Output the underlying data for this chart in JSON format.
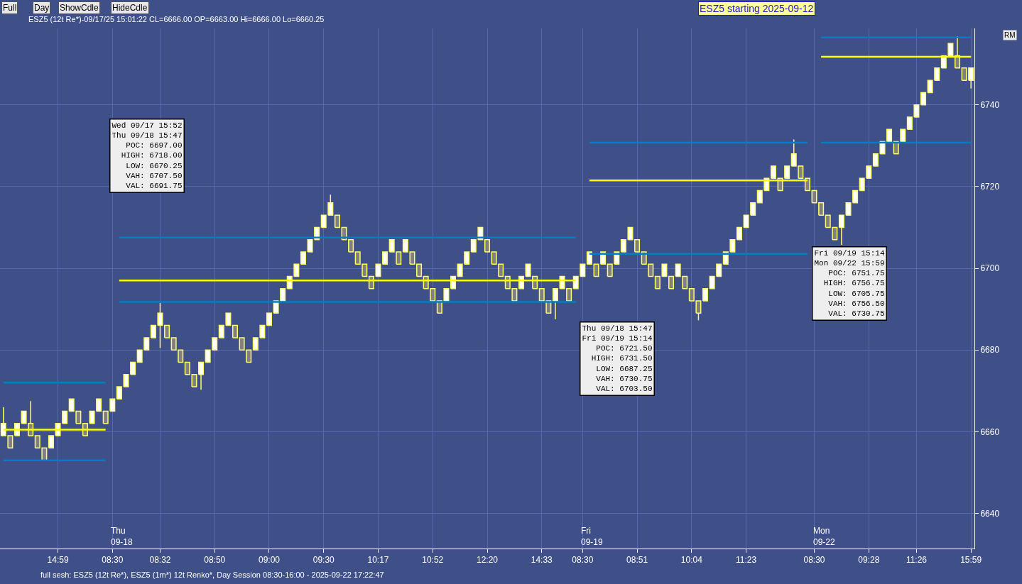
{
  "chart_data": {
    "type": "candlestick",
    "title": "ESZ5 (12t Re*)-09/17/25 15:01:22 CL=6666.00 OP=6663.00 Hi=6666.00 Lo=6660.25",
    "subtitle": "ESZ5 starting 2025-09-12",
    "categories": [
      null,
      null,
      null,
      null,
      null,
      null,
      null,
      null,
      "14:59",
      null,
      null,
      null,
      null,
      null,
      null,
      null,
      "08:30",
      null,
      null,
      null,
      null,
      null,
      null,
      "08:32",
      null,
      null,
      null,
      null,
      null,
      null,
      null,
      "08:50",
      null,
      null,
      null,
      null,
      null,
      null,
      null,
      "09:00",
      null,
      null,
      null,
      null,
      null,
      null,
      null,
      "09:30",
      null,
      null,
      null,
      null,
      null,
      null,
      null,
      "10:17",
      null,
      null,
      null,
      null,
      null,
      null,
      null,
      "10:52",
      null,
      null,
      null,
      null,
      null,
      null,
      null,
      "12:20",
      null,
      null,
      null,
      null,
      null,
      null,
      null,
      "14:33",
      null,
      null,
      null,
      null,
      null,
      "08:30",
      null,
      null,
      null,
      null,
      null,
      null,
      null,
      "08:51",
      null,
      null,
      null,
      null,
      null,
      null,
      null,
      "10:04",
      null,
      null,
      null,
      null,
      null,
      null,
      null,
      "11:23",
      null,
      null,
      null,
      null,
      null,
      null,
      null,
      null,
      null,
      "08:30",
      null,
      null,
      null,
      null,
      null,
      null,
      null,
      "09:28",
      null,
      null,
      null,
      null,
      null,
      null,
      "11:26",
      null,
      null,
      null,
      null,
      null,
      null,
      null,
      "15:59"
    ],
    "series": [
      {
        "ohlc": [
          [
            6659,
            6666,
            6659,
            6662
          ],
          [
            6659,
            6659,
            6656,
            6656
          ],
          [
            6659,
            6662,
            6659,
            6662
          ],
          [
            6662,
            6665,
            6662,
            6665
          ],
          [
            6662,
            6667.5,
            6659,
            6659
          ],
          [
            6659,
            6659,
            6656,
            6656
          ],
          [
            6656,
            6656,
            6653,
            6653
          ],
          [
            6656,
            6659,
            6656,
            6659
          ],
          [
            6659,
            6662,
            6659,
            6662
          ],
          [
            6662,
            6665,
            6662,
            6665
          ],
          [
            6665,
            6668,
            6665,
            6668
          ],
          [
            6665,
            6665,
            6662,
            6662
          ],
          [
            6662,
            6662,
            6659,
            6659
          ],
          [
            6662,
            6665,
            6662,
            6665
          ],
          [
            6665,
            6668,
            6665,
            6668
          ],
          [
            6665,
            6665,
            6662,
            6662
          ],
          [
            6665,
            6668,
            6665,
            6668
          ],
          [
            6668,
            6671,
            6668,
            6671
          ],
          [
            6671,
            6674,
            6671,
            6674
          ],
          [
            6674,
            6677,
            6674,
            6677
          ],
          [
            6677,
            6680,
            6677,
            6680
          ],
          [
            6680,
            6683,
            6680,
            6683
          ],
          [
            6683,
            6686,
            6683,
            6686
          ],
          [
            6686,
            6691.5,
            6680.5,
            6689
          ],
          [
            6686,
            6686,
            6683,
            6683
          ],
          [
            6683,
            6683,
            6680,
            6680
          ],
          [
            6680,
            6680,
            6677,
            6677
          ],
          [
            6677,
            6677,
            6674,
            6674
          ],
          [
            6674,
            6674,
            6671,
            6671
          ],
          [
            6674,
            6677,
            6670.25,
            6677
          ],
          [
            6677,
            6680,
            6677,
            6680
          ],
          [
            6680,
            6683,
            6680,
            6683
          ],
          [
            6683,
            6686,
            6683,
            6686
          ],
          [
            6686,
            6689,
            6686,
            6689
          ],
          [
            6686,
            6686,
            6683,
            6683
          ],
          [
            6683,
            6683,
            6680,
            6680
          ],
          [
            6680,
            6680,
            6677,
            6677
          ],
          [
            6680,
            6683,
            6680,
            6683
          ],
          [
            6683,
            6686,
            6683,
            6686
          ],
          [
            6686,
            6689,
            6686,
            6689
          ],
          [
            6689,
            6692,
            6689,
            6692
          ],
          [
            6692,
            6695,
            6692,
            6695
          ],
          [
            6695,
            6698,
            6695,
            6698
          ],
          [
            6698,
            6701,
            6698,
            6701
          ],
          [
            6701,
            6704,
            6701,
            6704
          ],
          [
            6704,
            6707,
            6704,
            6707
          ],
          [
            6707,
            6710,
            6707,
            6710
          ],
          [
            6710,
            6713,
            6710,
            6713
          ],
          [
            6713,
            6718,
            6713,
            6716
          ],
          [
            6713,
            6713,
            6710,
            6710
          ],
          [
            6710,
            6710,
            6707,
            6707
          ],
          [
            6707,
            6707,
            6704,
            6704
          ],
          [
            6704,
            6704,
            6701,
            6701
          ],
          [
            6701,
            6701,
            6698,
            6698
          ],
          [
            6698,
            6698,
            6695,
            6695
          ],
          [
            6698,
            6701,
            6698,
            6701
          ],
          [
            6701,
            6704,
            6701,
            6704
          ],
          [
            6704,
            6707,
            6704,
            6707
          ],
          [
            6704,
            6704,
            6701,
            6701
          ],
          [
            6704,
            6707,
            6704,
            6707
          ],
          [
            6704,
            6704,
            6701,
            6701
          ],
          [
            6701,
            6701,
            6698,
            6698
          ],
          [
            6698,
            6698,
            6695,
            6695
          ],
          [
            6695,
            6695,
            6692,
            6692
          ],
          [
            6692,
            6692,
            6689,
            6689
          ],
          [
            6692,
            6695,
            6692,
            6695
          ],
          [
            6695,
            6698,
            6695,
            6698
          ],
          [
            6698,
            6701,
            6698,
            6701
          ],
          [
            6701,
            6704,
            6701,
            6704
          ],
          [
            6704,
            6707,
            6704,
            6707
          ],
          [
            6707,
            6710,
            6707,
            6710
          ],
          [
            6707,
            6707,
            6704,
            6704
          ],
          [
            6704,
            6704,
            6701,
            6701
          ],
          [
            6701,
            6701,
            6698,
            6698
          ],
          [
            6698,
            6698,
            6695,
            6695
          ],
          [
            6695,
            6695,
            6692,
            6692
          ],
          [
            6695,
            6698,
            6695,
            6698
          ],
          [
            6698,
            6701,
            6698,
            6701
          ],
          [
            6698,
            6698,
            6695,
            6695
          ],
          [
            6695,
            6695,
            6692,
            6692
          ],
          [
            6692,
            6692,
            6689,
            6689
          ],
          [
            6692,
            6695,
            6687.5,
            6695
          ],
          [
            6695,
            6698,
            6695,
            6698
          ],
          [
            6695,
            6695,
            6692,
            6692
          ],
          [
            6695,
            6698,
            6695,
            6698
          ],
          [
            6698,
            6701,
            6698,
            6701
          ],
          [
            6701,
            6704,
            6701,
            6704
          ],
          [
            6701,
            6701,
            6698,
            6698
          ],
          [
            6701,
            6704,
            6701,
            6704
          ],
          [
            6701,
            6701,
            6698,
            6698
          ],
          [
            6701,
            6704,
            6701,
            6704
          ],
          [
            6704,
            6707,
            6704,
            6707
          ],
          [
            6707,
            6710,
            6707,
            6710
          ],
          [
            6707,
            6707,
            6704,
            6704
          ],
          [
            6704,
            6704,
            6701,
            6701
          ],
          [
            6701,
            6701,
            6698,
            6698
          ],
          [
            6698,
            6698,
            6695,
            6695
          ],
          [
            6698,
            6701,
            6698,
            6701
          ],
          [
            6698,
            6698,
            6695,
            6695
          ],
          [
            6698,
            6701,
            6698,
            6701
          ],
          [
            6698,
            6698,
            6695,
            6695
          ],
          [
            6695,
            6695,
            6692,
            6692
          ],
          [
            6692,
            6692,
            6687.25,
            6689
          ],
          [
            6692,
            6695,
            6692,
            6695
          ],
          [
            6695,
            6698,
            6695,
            6698
          ],
          [
            6698,
            6701,
            6698,
            6701
          ],
          [
            6701,
            6704,
            6701,
            6704
          ],
          [
            6704,
            6707,
            6704,
            6707
          ],
          [
            6707,
            6710,
            6707,
            6710
          ],
          [
            6710,
            6713,
            6710,
            6713
          ],
          [
            6713,
            6716,
            6713,
            6716
          ],
          [
            6716,
            6719,
            6716,
            6719
          ],
          [
            6719,
            6722,
            6719,
            6722
          ],
          [
            6722,
            6725,
            6722,
            6725
          ],
          [
            6722,
            6722,
            6719,
            6719
          ],
          [
            6722,
            6725,
            6722,
            6725
          ],
          [
            6725,
            6731.5,
            6725,
            6728
          ],
          [
            6725,
            6725,
            6722,
            6722
          ],
          [
            6722,
            6722,
            6719,
            6719
          ],
          [
            6719,
            6719,
            6716,
            6716
          ],
          [
            6716,
            6716,
            6713,
            6713
          ],
          [
            6713,
            6713,
            6710,
            6710
          ],
          [
            6710,
            6710,
            6707,
            6707
          ],
          [
            6710,
            6713,
            6705.75,
            6713
          ],
          [
            6713,
            6716,
            6713,
            6716
          ],
          [
            6716,
            6719,
            6716,
            6719
          ],
          [
            6719,
            6722,
            6719,
            6722
          ],
          [
            6722,
            6725,
            6722,
            6725
          ],
          [
            6725,
            6728,
            6725,
            6728
          ],
          [
            6728,
            6731,
            6728,
            6731
          ],
          [
            6731,
            6734,
            6731,
            6734
          ],
          [
            6731,
            6731,
            6728,
            6728
          ],
          [
            6731,
            6734,
            6731,
            6734
          ],
          [
            6734,
            6737,
            6734,
            6737
          ],
          [
            6737,
            6740,
            6737,
            6740
          ],
          [
            6740,
            6743,
            6740,
            6743
          ],
          [
            6743,
            6746,
            6743,
            6746
          ],
          [
            6746,
            6749,
            6746,
            6749
          ],
          [
            6749,
            6752,
            6749,
            6752
          ],
          [
            6752,
            6755,
            6752,
            6755
          ],
          [
            6752,
            6756.75,
            6749,
            6749
          ],
          [
            6749,
            6749,
            6746,
            6746
          ],
          [
            6746,
            6749,
            6744,
            6749
          ]
        ]
      },
      {
        "type": "line",
        "color": "#ffff00",
        "values": [
          6660.5,
          6660.5,
          6660.5,
          6660.5,
          6660.5,
          6660.5,
          6660.5,
          6660.5,
          6660.5,
          6660.5,
          6660.5,
          6660.5,
          6660.5,
          6660.5,
          6660.5,
          6660.5,
          null,
          6697,
          6697,
          6697,
          6697,
          6697,
          6697,
          6697,
          6697,
          6697,
          6697,
          6697,
          6697,
          6697,
          6697,
          6697,
          6697,
          6697,
          6697,
          6697,
          6697,
          6697,
          6697,
          6697,
          6697,
          6697,
          6697,
          6697,
          6697,
          6697,
          6697,
          6697,
          6697,
          6697,
          6697,
          6697,
          6697,
          6697,
          6697,
          6697,
          6697,
          6697,
          6697,
          6697,
          6697,
          6697,
          6697,
          6697,
          6697,
          6697,
          6697,
          6697,
          6697,
          6697,
          6697,
          6697,
          6697,
          6697,
          6697,
          6697,
          6697,
          6697,
          6697,
          6697,
          6697,
          6697,
          6697,
          6697,
          6697,
          null,
          6721.5,
          6721.5,
          6721.5,
          6721.5,
          6721.5,
          6721.5,
          6721.5,
          6721.5,
          6721.5,
          6721.5,
          6721.5,
          6721.5,
          6721.5,
          6721.5,
          6721.5,
          6721.5,
          6721.5,
          6721.5,
          6721.5,
          6721.5,
          6721.5,
          6721.5,
          6721.5,
          6721.5,
          6721.5,
          6721.5,
          6721.5,
          6721.5,
          6721.5,
          6721.5,
          6721.5,
          6721.5,
          6721.5,
          null,
          6751.75,
          6751.75,
          6751.75,
          6751.75,
          6751.75,
          6751.75,
          6751.75,
          6751.75,
          6751.75,
          6751.75,
          6751.75,
          6751.75,
          6751.75,
          6751.75,
          6751.75,
          6751.75,
          6751.75,
          6751.75,
          6751.75,
          6751.75,
          6751.75,
          6751.75,
          6751.75
        ]
      },
      {
        "type": "line",
        "color": "#0080c0",
        "values": [
          6672,
          6672,
          6672,
          6672,
          6672,
          6672,
          6672,
          6672,
          6672,
          6672,
          6672,
          6672,
          6672,
          6672,
          6672,
          6672,
          null,
          6707.5,
          6707.5,
          6707.5,
          6707.5,
          6707.5,
          6707.5,
          6707.5,
          6707.5,
          6707.5,
          6707.5,
          6707.5,
          6707.5,
          6707.5,
          6707.5,
          6707.5,
          6707.5,
          6707.5,
          6707.5,
          6707.5,
          6707.5,
          6707.5,
          6707.5,
          6707.5,
          6707.5,
          6707.5,
          6707.5,
          6707.5,
          6707.5,
          6707.5,
          6707.5,
          6707.5,
          6707.5,
          6707.5,
          6707.5,
          6707.5,
          6707.5,
          6707.5,
          6707.5,
          6707.5,
          6707.5,
          6707.5,
          6707.5,
          6707.5,
          6707.5,
          6707.5,
          6707.5,
          6707.5,
          6707.5,
          6707.5,
          6707.5,
          6707.5,
          6707.5,
          6707.5,
          6707.5,
          6707.5,
          6707.5,
          6707.5,
          6707.5,
          6707.5,
          6707.5,
          6707.5,
          6707.5,
          6707.5,
          6707.5,
          6707.5,
          6707.5,
          6707.5,
          6707.5,
          null,
          6730.75,
          6730.75,
          6730.75,
          6730.75,
          6730.75,
          6730.75,
          6730.75,
          6730.75,
          6730.75,
          6730.75,
          6730.75,
          6730.75,
          6730.75,
          6730.75,
          6730.75,
          6730.75,
          6730.75,
          6730.75,
          6730.75,
          6730.75,
          6730.75,
          6730.75,
          6730.75,
          6730.75,
          6730.75,
          6730.75,
          6730.75,
          6730.75,
          6730.75,
          6730.75,
          6730.75,
          6730.75,
          6730.75,
          null,
          6756.5,
          6756.5,
          6756.5,
          6756.5,
          6756.5,
          6756.5,
          6756.5,
          6756.5,
          6756.5,
          6756.5,
          6756.5,
          6756.5,
          6756.5,
          6756.5,
          6756.5,
          6756.5,
          6756.5,
          6756.5,
          6756.5,
          6756.5,
          6756.5,
          6756.5,
          6756.5
        ]
      },
      {
        "type": "line",
        "color": "#0080c0",
        "values": [
          6653,
          6653,
          6653,
          6653,
          6653,
          6653,
          6653,
          6653,
          6653,
          6653,
          6653,
          6653,
          6653,
          6653,
          6653,
          6653,
          null,
          6691.75,
          6691.75,
          6691.75,
          6691.75,
          6691.75,
          6691.75,
          6691.75,
          6691.75,
          6691.75,
          6691.75,
          6691.75,
          6691.75,
          6691.75,
          6691.75,
          6691.75,
          6691.75,
          6691.75,
          6691.75,
          6691.75,
          6691.75,
          6691.75,
          6691.75,
          6691.75,
          6691.75,
          6691.75,
          6691.75,
          6691.75,
          6691.75,
          6691.75,
          6691.75,
          6691.75,
          6691.75,
          6691.75,
          6691.75,
          6691.75,
          6691.75,
          6691.75,
          6691.75,
          6691.75,
          6691.75,
          6691.75,
          6691.75,
          6691.75,
          6691.75,
          6691.75,
          6691.75,
          6691.75,
          6691.75,
          6691.75,
          6691.75,
          6691.75,
          6691.75,
          6691.75,
          6691.75,
          6691.75,
          6691.75,
          6691.75,
          6691.75,
          6691.75,
          6691.75,
          6691.75,
          6691.75,
          6691.75,
          6691.75,
          6691.75,
          6691.75,
          6691.75,
          6691.75,
          null,
          6703.5,
          6703.5,
          6703.5,
          6703.5,
          6703.5,
          6703.5,
          6703.5,
          6703.5,
          6703.5,
          6703.5,
          6703.5,
          6703.5,
          6703.5,
          6703.5,
          6703.5,
          6703.5,
          6703.5,
          6703.5,
          6703.5,
          6703.5,
          6703.5,
          6703.5,
          6703.5,
          6703.5,
          6703.5,
          6703.5,
          6703.5,
          6703.5,
          6703.5,
          6703.5,
          6703.5,
          6703.5,
          6703.5,
          null,
          6730.75,
          6730.75,
          6730.75,
          6730.75,
          6730.75,
          6730.75,
          6730.75,
          6730.75,
          6730.75,
          6730.75,
          6730.75,
          6730.75,
          6730.75,
          6730.75,
          6730.75,
          6730.75,
          6730.75,
          6730.75,
          6730.75,
          6730.75,
          6730.75,
          6730.75,
          6730.75
        ]
      }
    ],
    "ylim": [
      6631.4,
      6758.7
    ],
    "yticks": [
      6640,
      6660,
      6680,
      6700,
      6720,
      6740
    ],
    "grid": true,
    "annotations": [
      "Full",
      "Day",
      "ShowCdle",
      "HideCdle",
      "RM",
      "full sesh: ESZ5 (12t Re*), ESZ5 (1m*) 12t Renko*, Day Session 08:30-16:00 - 2025-09-22 17:22:47",
      "Thu\n09-18",
      "Fri\n09-19",
      "Mon\n09-22",
      "Wed 09/17 15:52\nThu 09/18 15:47\n   POC: 6697.00\n  HIGH: 6718.00\n   LOW: 6670.25\n   VAH: 6707.50\n   VAL: 6691.75",
      "Thu 09/18 15:47\nFri 09/19 15:14\n   POC: 6721.50\n  HIGH: 6731.50\n   LOW: 6687.25\n   VAH: 6730.75\n   VAL: 6703.50",
      "Fri 09/19 15:14\nMon 09/22 15:59\n   POC: 6751.75\n  HIGH: 6756.75\n   LOW: 6705.75\n   VAH: 6756.50\n   VAL: 6730.75"
    ]
  }
}
